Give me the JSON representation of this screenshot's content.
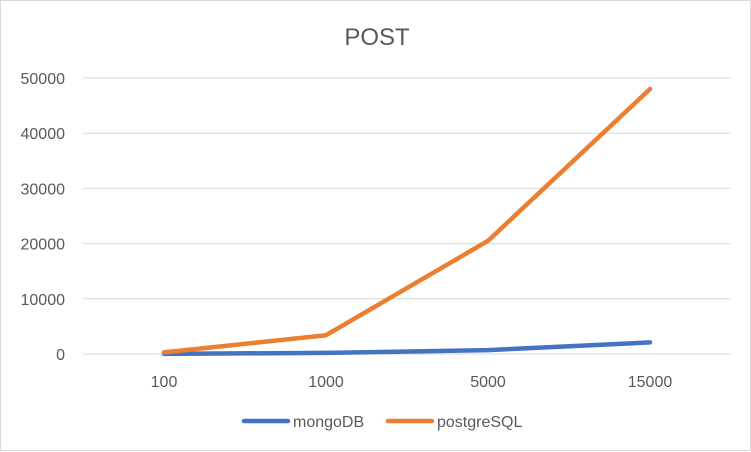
{
  "chart_data": {
    "type": "line",
    "title": "POST",
    "categories": [
      "100",
      "1000",
      "5000",
      "15000"
    ],
    "series": [
      {
        "name": "mongoDB",
        "values": [
          30,
          200,
          700,
          2100
        ],
        "color": "#4472C4"
      },
      {
        "name": "postgreSQL",
        "values": [
          300,
          3400,
          20500,
          48000
        ],
        "color": "#ED7D31"
      }
    ],
    "ylim": [
      0,
      50000
    ],
    "yticks": [
      "0",
      "10000",
      "20000",
      "30000",
      "40000",
      "50000"
    ],
    "grid": true,
    "legend": "bottom"
  }
}
